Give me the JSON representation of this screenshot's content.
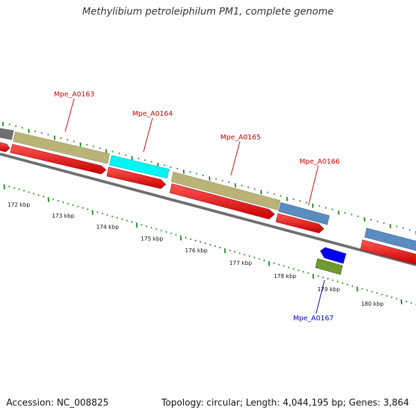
{
  "title": "Methylibium petroleiphilum PM1, complete genome",
  "footer": {
    "accession": "Accession: NC_008825",
    "summary": "Topology: circular; Length: 4,044,195 bp; Genes: 3,864"
  },
  "scale": {
    "unit": "kbp",
    "labels": [
      "172 kbp",
      "173 kbp",
      "174 kbp",
      "175 kbp",
      "176 kbp",
      "177 kbp",
      "178 kbp",
      "179 kbp",
      "180 kbp"
    ]
  },
  "genes": [
    {
      "id": "Mpe_A0163",
      "color": "#cc0000"
    },
    {
      "id": "Mpe_A0164",
      "color": "#cc0000"
    },
    {
      "id": "Mpe_A0165",
      "color": "#cc0000"
    },
    {
      "id": "Mpe_A0166",
      "color": "#cc0000"
    },
    {
      "id": "Mpe_A0167",
      "color": "#0000cc"
    }
  ],
  "colors": {
    "backbone": "#808080",
    "cds": "#ff0000",
    "tan": "#bdb76b",
    "cyan": "#00ffff",
    "steelblue": "#4682b4",
    "blue": "#0000ff",
    "olive": "#6b8e23",
    "gray": "#696969",
    "tick": "#228b22"
  }
}
